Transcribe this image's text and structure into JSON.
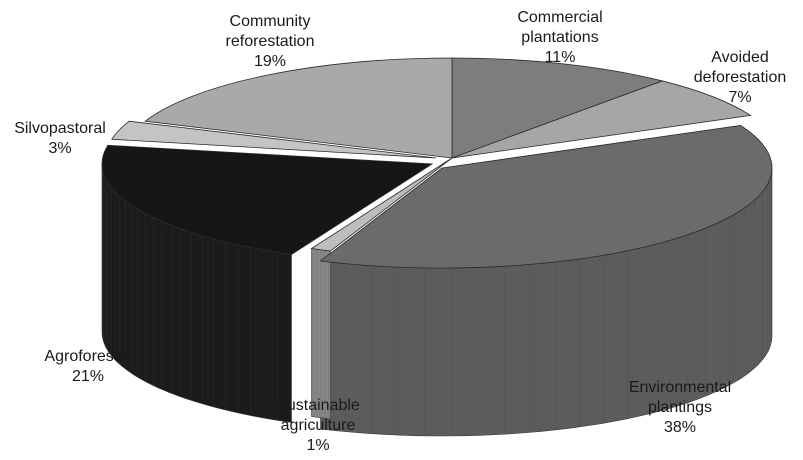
{
  "chart_data": {
    "type": "pie",
    "style": "3d-exploded",
    "title": "",
    "slices": [
      {
        "category": "Commercial plantations",
        "lines": [
          "Commercial",
          "plantations"
        ],
        "value": 11,
        "pct_label": "11%",
        "color": "#7d7d7d",
        "side": "#5e5e5e"
      },
      {
        "category": "Avoided deforestation",
        "lines": [
          "Avoided",
          "deforestation"
        ],
        "value": 7,
        "pct_label": "7%",
        "color": "#a6a6a6",
        "side": "#888888"
      },
      {
        "category": "Environmental plantings",
        "lines": [
          "Environmental",
          "plantings"
        ],
        "value": 38,
        "pct_label": "38%",
        "color": "#6b6b6b",
        "side": "#5c5c5c"
      },
      {
        "category": "Sustainable agriculture",
        "lines": [
          "Sustainable",
          "agriculture"
        ],
        "value": 1,
        "pct_label": "1%",
        "color": "#bdbdbd",
        "side": "#9a9a9a"
      },
      {
        "category": "Agroforestry",
        "lines": [
          "Agroforestry"
        ],
        "value": 21,
        "pct_label": "21%",
        "color": "#161616",
        "side": "#1b1b1b"
      },
      {
        "category": "Silvopastoral",
        "lines": [
          "Silvopastoral"
        ],
        "value": 3,
        "pct_label": "3%",
        "color": "#c4c4c4",
        "side": "#a3a3a3"
      },
      {
        "category": "Community reforestation",
        "lines": [
          "Community",
          "reforestation"
        ],
        "value": 19,
        "pct_label": "19%",
        "color": "#a9a9a9",
        "side": "#8c8c8c"
      }
    ]
  }
}
